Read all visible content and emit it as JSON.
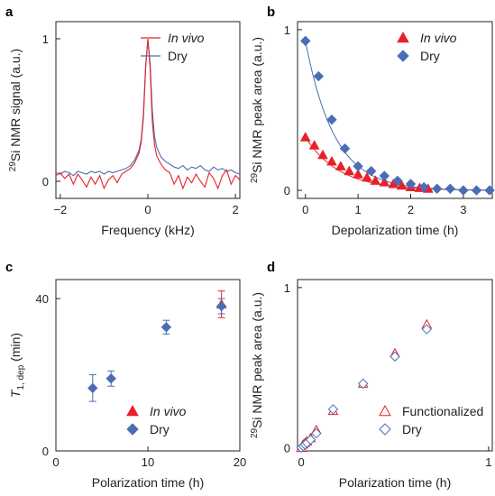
{
  "colors": {
    "red": "#e8202a",
    "blue": "#4a6db3",
    "axis": "#231f20"
  },
  "chart_data": [
    {
      "panel": "a",
      "type": "line",
      "xlabel": "Frequency (kHz)",
      "ylabel_sup": "29",
      "ylabel_rest": "Si NMR signal (a.u.)",
      "xlim": [
        -2.1,
        2.1
      ],
      "ylim": [
        -0.12,
        1.12
      ],
      "xticks": [
        -2,
        0,
        2
      ],
      "xtick_labels": [
        "−2",
        "0",
        "2"
      ],
      "yticks": [
        0,
        1
      ],
      "ytick_labels": [
        "0",
        "1"
      ],
      "legend_position": "top-right",
      "series": [
        {
          "name": "In vivo",
          "name_style": "italic",
          "color": "red",
          "x": [
            -2.1,
            -2.0,
            -1.9,
            -1.8,
            -1.7,
            -1.6,
            -1.5,
            -1.4,
            -1.3,
            -1.2,
            -1.1,
            -1.0,
            -0.9,
            -0.8,
            -0.7,
            -0.6,
            -0.5,
            -0.4,
            -0.3,
            -0.2,
            -0.15,
            -0.1,
            -0.05,
            0.0,
            0.05,
            0.1,
            0.15,
            0.2,
            0.3,
            0.4,
            0.5,
            0.6,
            0.7,
            0.8,
            0.9,
            1.0,
            1.1,
            1.2,
            1.3,
            1.4,
            1.5,
            1.6,
            1.7,
            1.8,
            1.9,
            2.0,
            2.1
          ],
          "y": [
            0.04,
            0.06,
            0.02,
            0.05,
            -0.02,
            0.05,
            0.01,
            -0.04,
            0.03,
            -0.02,
            0.04,
            -0.05,
            0.01,
            0.04,
            -0.01,
            0.05,
            0.07,
            0.09,
            0.13,
            0.2,
            0.28,
            0.45,
            0.8,
            1.0,
            0.8,
            0.42,
            0.26,
            0.18,
            0.12,
            0.08,
            0.06,
            -0.02,
            0.04,
            -0.05,
            0.03,
            -0.01,
            0.05,
            0.0,
            -0.04,
            0.06,
            0.02,
            -0.05,
            0.04,
            0.08,
            -0.02,
            0.04,
            0.01
          ]
        },
        {
          "name": "Dry",
          "name_style": "normal",
          "color": "blue",
          "x": [
            -2.1,
            -2.0,
            -1.9,
            -1.8,
            -1.7,
            -1.6,
            -1.5,
            -1.4,
            -1.3,
            -1.2,
            -1.1,
            -1.0,
            -0.9,
            -0.8,
            -0.7,
            -0.6,
            -0.5,
            -0.4,
            -0.3,
            -0.2,
            -0.15,
            -0.1,
            -0.05,
            0.0,
            0.05,
            0.1,
            0.15,
            0.2,
            0.3,
            0.4,
            0.5,
            0.6,
            0.7,
            0.8,
            0.9,
            1.0,
            1.1,
            1.2,
            1.3,
            1.4,
            1.5,
            1.6,
            1.7,
            1.8,
            1.9,
            2.0,
            2.1
          ],
          "y": [
            0.06,
            0.05,
            0.07,
            0.06,
            0.04,
            0.07,
            0.06,
            0.05,
            0.07,
            0.06,
            0.07,
            0.05,
            0.07,
            0.06,
            0.07,
            0.08,
            0.09,
            0.11,
            0.15,
            0.22,
            0.3,
            0.48,
            0.82,
            0.99,
            0.84,
            0.5,
            0.32,
            0.24,
            0.17,
            0.14,
            0.12,
            0.1,
            0.09,
            0.11,
            0.08,
            0.1,
            0.09,
            0.11,
            0.08,
            0.07,
            0.1,
            0.08,
            0.09,
            0.07,
            0.08,
            0.06,
            0.05
          ]
        }
      ]
    },
    {
      "panel": "b",
      "type": "scatter",
      "xlabel": "Depolarization time (h)",
      "ylabel_sup": "29",
      "ylabel_rest": "Si NMR peak area (a.u.)",
      "xlim": [
        -0.15,
        3.55
      ],
      "ylim": [
        -0.05,
        1.05
      ],
      "xticks": [
        0,
        1,
        2,
        3
      ],
      "xtick_labels": [
        "0",
        "1",
        "2",
        "3"
      ],
      "yticks": [
        0,
        1
      ],
      "ytick_labels": [
        "0",
        "1"
      ],
      "legend_position": "top-right",
      "series": [
        {
          "name": "In vivo",
          "name_style": "italic",
          "color": "red",
          "marker": "triangle",
          "x": [
            0,
            0.17,
            0.33,
            0.5,
            0.67,
            0.83,
            1.0,
            1.17,
            1.33,
            1.5,
            1.67,
            1.83,
            2.0,
            2.17,
            2.33
          ],
          "y": [
            0.33,
            0.28,
            0.22,
            0.18,
            0.15,
            0.12,
            0.1,
            0.08,
            0.06,
            0.05,
            0.04,
            0.03,
            0.02,
            0.015,
            0.01
          ],
          "fit_amplitude": 0.33,
          "fit_tau": 0.65
        },
        {
          "name": "Dry",
          "name_style": "normal",
          "color": "blue",
          "marker": "diamond",
          "x": [
            0,
            0.25,
            0.5,
            0.75,
            1.0,
            1.25,
            1.5,
            1.75,
            2.0,
            2.25,
            2.5,
            2.75,
            3.0,
            3.25,
            3.5
          ],
          "y": [
            0.93,
            0.71,
            0.44,
            0.26,
            0.15,
            0.12,
            0.09,
            0.06,
            0.04,
            0.02,
            0.01,
            0.01,
            0.0,
            0.0,
            0.0
          ],
          "fit_amplitude": 0.93,
          "fit_tau": 0.55
        }
      ]
    },
    {
      "panel": "c",
      "type": "scatter",
      "xlabel": "Polarization time (h)",
      "ylabel_main": "T",
      "ylabel_sub": "1, dep",
      "ylabel_unit": " (min)",
      "xlim": [
        0,
        20
      ],
      "ylim": [
        0,
        45
      ],
      "xticks": [
        0,
        10,
        20
      ],
      "xtick_labels": [
        "0",
        "10",
        "20"
      ],
      "yticks": [
        0,
        40
      ],
      "ytick_labels": [
        "0",
        "40"
      ],
      "legend_position": "bottom-right",
      "series": [
        {
          "name": "In vivo",
          "name_style": "italic",
          "color": "red",
          "marker": "triangle",
          "x": [
            18
          ],
          "y": [
            38.5
          ],
          "err": [
            3.5
          ]
        },
        {
          "name": "Dry",
          "name_style": "normal",
          "color": "blue",
          "marker": "diamond",
          "x": [
            4,
            6,
            12,
            18
          ],
          "y": [
            16.5,
            19,
            32.5,
            38
          ],
          "err": [
            3.5,
            2,
            1.8,
            2
          ]
        }
      ]
    },
    {
      "panel": "d",
      "type": "scatter",
      "xlabel": "Polarization time (h)",
      "ylabel_sup": "29",
      "ylabel_rest": "Si NMR peak area (a.u.)",
      "xlim": [
        -0.02,
        1.02
      ],
      "ylim": [
        -0.02,
        1.05
      ],
      "xticks": [
        0,
        1
      ],
      "xtick_labels": [
        "0",
        "1"
      ],
      "yticks": [
        0,
        1
      ],
      "ytick_labels": [
        "0",
        "1"
      ],
      "legend_position": "bottom-right",
      "series": [
        {
          "name": "Functionalized",
          "name_style": "normal",
          "color": "red",
          "marker": "open-triangle",
          "x": [
            0.0,
            0.01,
            0.02,
            0.03,
            0.05,
            0.08,
            0.17,
            0.33,
            0.5,
            0.67
          ],
          "y": [
            0.0,
            0.02,
            0.03,
            0.04,
            0.06,
            0.11,
            0.23,
            0.4,
            0.59,
            0.77
          ]
        },
        {
          "name": "Dry",
          "name_style": "normal",
          "color": "blue",
          "marker": "open-diamond",
          "x": [
            0.0,
            0.01,
            0.02,
            0.03,
            0.05,
            0.08,
            0.17,
            0.33,
            0.5,
            0.67
          ],
          "y": [
            0.0,
            0.01,
            0.02,
            0.03,
            0.05,
            0.09,
            0.24,
            0.4,
            0.57,
            0.74
          ]
        }
      ]
    }
  ]
}
